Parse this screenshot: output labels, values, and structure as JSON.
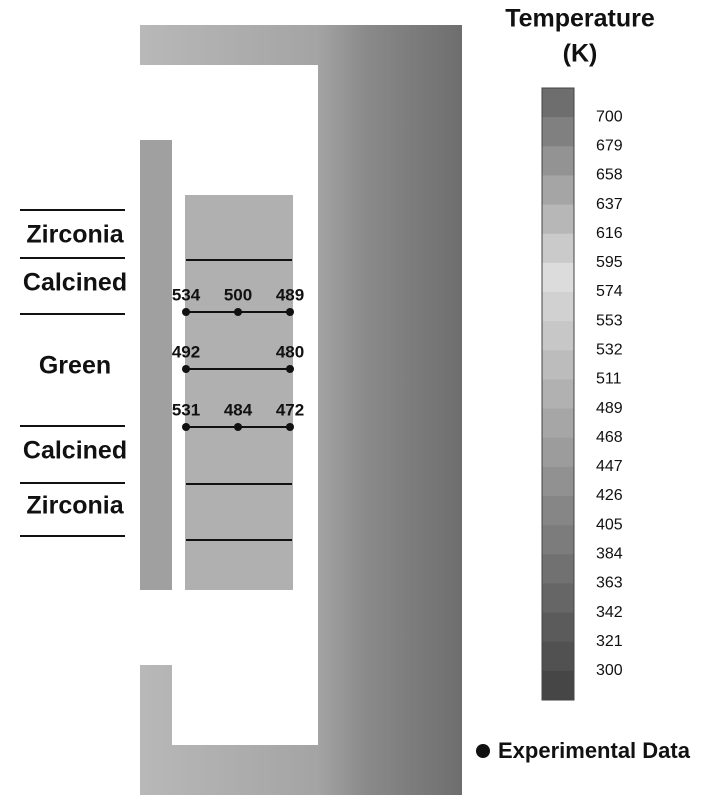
{
  "legend": {
    "title": [
      "Temperature",
      "(K)"
    ],
    "ticks": [
      700,
      679,
      658,
      637,
      616,
      595,
      574,
      553,
      532,
      511,
      489,
      468,
      447,
      426,
      405,
      384,
      363,
      342,
      321,
      300
    ]
  },
  "layers": [
    "Zirconia",
    "Calcined",
    "Green",
    "Calcined",
    "Zirconia"
  ],
  "measurements": [
    {
      "values": [
        534,
        500,
        489
      ]
    },
    {
      "values": [
        492,
        480
      ]
    },
    {
      "values": [
        531,
        484,
        472
      ]
    }
  ],
  "experimental_label": "Experimental Data"
}
